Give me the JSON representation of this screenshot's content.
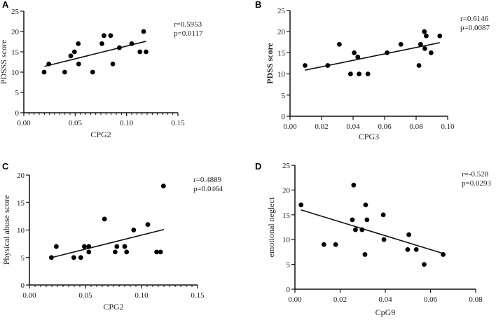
{
  "chart_data": [
    {
      "type": "scatter",
      "panel": "A",
      "xlabel": "CPG2",
      "ylabel": "PDSSS score",
      "xlim": [
        0,
        0.15
      ],
      "ylim": [
        0,
        25
      ],
      "xticks": [
        "0.00",
        "0.05",
        "0.10",
        "0.15"
      ],
      "yticks": [
        "0",
        "5",
        "10",
        "15",
        "20",
        "25"
      ],
      "r": "r=0.5953",
      "p": "p=0.0117",
      "x": [
        0.0198,
        0.0243,
        0.0398,
        0.0457,
        0.0493,
        0.053,
        0.0534,
        0.067,
        0.076,
        0.078,
        0.0845,
        0.0866,
        0.093,
        0.105,
        0.113,
        0.1166,
        0.119
      ],
      "y": [
        10,
        12,
        10,
        14,
        15,
        17,
        12,
        10,
        17,
        19,
        19,
        12,
        16,
        17,
        15,
        20,
        15
      ],
      "fit": {
        "x": [
          0.02,
          0.119
        ],
        "y": [
          11.4,
          17.6
        ]
      }
    },
    {
      "type": "scatter",
      "panel": "B",
      "xlabel": "CPG3",
      "ylabel": "PDSS score",
      "xlim": [
        0,
        0.1
      ],
      "ylim": [
        0,
        25
      ],
      "xticks": [
        "0.00",
        "0.02",
        "0.04",
        "0.06",
        "0.08",
        "0.10"
      ],
      "yticks": [
        "0",
        "5",
        "10",
        "15",
        "20",
        "25"
      ],
      "r": "r=0.6146",
      "p": "p=0.0087",
      "x": [
        0.0095,
        0.0239,
        0.0313,
        0.0384,
        0.0407,
        0.043,
        0.0438,
        0.0494,
        0.0616,
        0.0703,
        0.0818,
        0.0828,
        0.0852,
        0.0855,
        0.0864,
        0.0895,
        0.095
      ],
      "y": [
        12,
        12,
        17,
        10,
        15,
        14,
        10,
        10,
        15,
        17,
        12,
        17,
        20,
        16,
        19,
        15,
        19
      ],
      "fit": {
        "x": [
          0.0095,
          0.095
        ],
        "y": [
          10.9,
          17.4
        ]
      }
    },
    {
      "type": "scatter",
      "panel": "C",
      "xlabel": "CPG2",
      "ylabel": "Physical abuse score",
      "xlim": [
        0,
        0.15
      ],
      "ylim": [
        0,
        20
      ],
      "xticks": [
        "0.00",
        "0.05",
        "0.10",
        "0.15"
      ],
      "yticks": [
        "0",
        "5",
        "10",
        "15",
        "20"
      ],
      "r": "r=0.4889",
      "p": "p=0.0464",
      "x": [
        0.0196,
        0.024,
        0.0396,
        0.0458,
        0.049,
        0.053,
        0.053,
        0.067,
        0.0765,
        0.078,
        0.085,
        0.0867,
        0.093,
        0.1056,
        0.1135,
        0.117,
        0.1196
      ],
      "y": [
        5,
        7,
        5,
        5,
        7,
        7,
        6,
        12,
        6,
        7,
        7,
        6,
        10,
        11,
        6,
        6,
        18
      ],
      "fit": {
        "x": [
          0.02,
          0.12
        ],
        "y": [
          5.0,
          10.1
        ]
      }
    },
    {
      "type": "scatter",
      "panel": "D",
      "xlabel": "CpG9",
      "ylabel": "emotional neglect",
      "xlim": [
        0,
        0.08
      ],
      "ylim": [
        0,
        25
      ],
      "xticks": [
        "0.00",
        "0.02",
        "0.04",
        "0.06",
        "0.08"
      ],
      "yticks": [
        "0",
        "5",
        "10",
        "15",
        "20",
        "25"
      ],
      "r": "r=-0.528",
      "p": "p=0.0293",
      "x": [
        0.0027,
        0.0128,
        0.018,
        0.0254,
        0.026,
        0.0268,
        0.0297,
        0.031,
        0.0313,
        0.0319,
        0.0391,
        0.0394,
        0.0499,
        0.0504,
        0.0537,
        0.0572,
        0.0656
      ],
      "y": [
        17,
        9,
        9,
        14,
        21,
        12,
        12,
        7,
        17,
        14,
        15,
        10,
        8,
        11,
        8,
        5,
        7
      ],
      "fit": {
        "x": [
          0.0027,
          0.0656
        ],
        "y": [
          16.0,
          7.2
        ]
      }
    }
  ]
}
